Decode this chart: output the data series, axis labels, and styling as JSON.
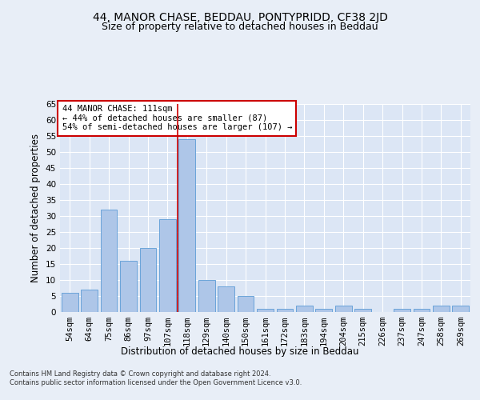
{
  "title_line1": "44, MANOR CHASE, BEDDAU, PONTYPRIDD, CF38 2JD",
  "title_line2": "Size of property relative to detached houses in Beddau",
  "xlabel": "Distribution of detached houses by size in Beddau",
  "ylabel": "Number of detached properties",
  "categories": [
    "54sqm",
    "64sqm",
    "75sqm",
    "86sqm",
    "97sqm",
    "107sqm",
    "118sqm",
    "129sqm",
    "140sqm",
    "150sqm",
    "161sqm",
    "172sqm",
    "183sqm",
    "194sqm",
    "204sqm",
    "215sqm",
    "226sqm",
    "237sqm",
    "247sqm",
    "258sqm",
    "269sqm"
  ],
  "values": [
    6,
    7,
    32,
    16,
    20,
    29,
    54,
    10,
    8,
    5,
    1,
    1,
    2,
    1,
    2,
    1,
    0,
    1,
    1,
    2,
    2
  ],
  "bar_color": "#aec6e8",
  "bar_edge_color": "#5b9bd5",
  "vline_x": 5.5,
  "vline_color": "#cc0000",
  "ylim": [
    0,
    65
  ],
  "yticks": [
    0,
    5,
    10,
    15,
    20,
    25,
    30,
    35,
    40,
    45,
    50,
    55,
    60,
    65
  ],
  "annotation_text": "44 MANOR CHASE: 111sqm\n← 44% of detached houses are smaller (87)\n54% of semi-detached houses are larger (107) →",
  "annotation_box_color": "white",
  "annotation_box_edgecolor": "#cc0000",
  "background_color": "#e8eef7",
  "plot_background_color": "#dce6f5",
  "footer_line1": "Contains HM Land Registry data © Crown copyright and database right 2024.",
  "footer_line2": "Contains public sector information licensed under the Open Government Licence v3.0.",
  "title_fontsize": 10,
  "subtitle_fontsize": 9,
  "tick_fontsize": 7.5,
  "ylabel_fontsize": 8.5,
  "xlabel_fontsize": 8.5,
  "annotation_fontsize": 7.5,
  "footer_fontsize": 6
}
